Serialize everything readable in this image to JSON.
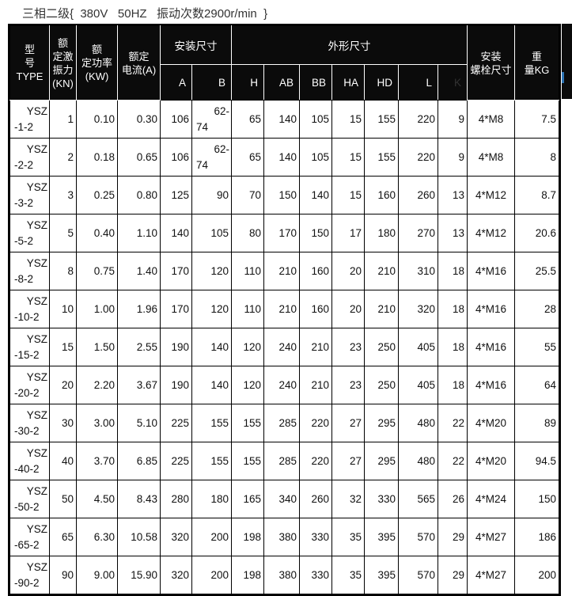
{
  "title": "三相二级{  380V   50HZ   振动次数2900r/min  }",
  "table": {
    "header": {
      "model_lines": [
        "型",
        "号",
        "TYPE"
      ],
      "force_lines": [
        "额",
        "定激",
        "振力",
        "(KN)"
      ],
      "power_lines": [
        "额",
        "定功率",
        "(KW)"
      ],
      "current_lines": [
        "额定",
        "电流(A)"
      ],
      "mount_group": "安装尺寸",
      "outline_group": "外形尺寸",
      "bolt_lines": [
        "安装",
        "螺栓尺寸"
      ],
      "weight_lines": [
        "重",
        "量KG"
      ],
      "sub_cols": [
        "A",
        "B",
        "H",
        "AB",
        "BB",
        "HA",
        "HD",
        "L",
        "K"
      ]
    },
    "rows": [
      {
        "model": "YSZ-1-2",
        "kn": "1",
        "kw": "0.10",
        "amp": "0.30",
        "a": "106",
        "b": "62-74",
        "h": "65",
        "ab": "140",
        "bb": "105",
        "ha": "15",
        "hd": "155",
        "l": "220",
        "k": "9",
        "bolt": "4*M8",
        "kg": "7.5"
      },
      {
        "model": "YSZ-2-2",
        "kn": "2",
        "kw": "0.18",
        "amp": "0.65",
        "a": "106",
        "b": "62-74",
        "h": "65",
        "ab": "140",
        "bb": "105",
        "ha": "15",
        "hd": "155",
        "l": "220",
        "k": "9",
        "bolt": "4*M8",
        "kg": "8"
      },
      {
        "model": "YSZ-3-2",
        "kn": "3",
        "kw": "0.25",
        "amp": "0.80",
        "a": "125",
        "b": "90",
        "h": "70",
        "ab": "150",
        "bb": "140",
        "ha": "15",
        "hd": "160",
        "l": "260",
        "k": "13",
        "bolt": "4*M12",
        "kg": "8.7"
      },
      {
        "model": "YSZ-5-2",
        "kn": "5",
        "kw": "0.40",
        "amp": "1.10",
        "a": "140",
        "b": "105",
        "h": "80",
        "ab": "170",
        "bb": "150",
        "ha": "17",
        "hd": "180",
        "l": "270",
        "k": "13",
        "bolt": "4*M12",
        "kg": "20.6"
      },
      {
        "model": "YSZ-8-2",
        "kn": "8",
        "kw": "0.75",
        "amp": "1.40",
        "a": "170",
        "b": "120",
        "h": "110",
        "ab": "210",
        "bb": "160",
        "ha": "20",
        "hd": "210",
        "l": "310",
        "k": "18",
        "bolt": "4*M16",
        "kg": "25.5"
      },
      {
        "model": "YSZ-10-2",
        "kn": "10",
        "kw": "1.00",
        "amp": "1.96",
        "a": "170",
        "b": "120",
        "h": "110",
        "ab": "210",
        "bb": "160",
        "ha": "20",
        "hd": "210",
        "l": "320",
        "k": "18",
        "bolt": "4*M16",
        "kg": "28"
      },
      {
        "model": "YSZ-15-2",
        "kn": "15",
        "kw": "1.50",
        "amp": "2.55",
        "a": "190",
        "b": "140",
        "h": "120",
        "ab": "240",
        "bb": "210",
        "ha": "23",
        "hd": "250",
        "l": "405",
        "k": "18",
        "bolt": "4*M16",
        "kg": "55"
      },
      {
        "model": "YSZ-20-2",
        "kn": "20",
        "kw": "2.20",
        "amp": "3.67",
        "a": "190",
        "b": "140",
        "h": "120",
        "ab": "240",
        "bb": "210",
        "ha": "23",
        "hd": "250",
        "l": "405",
        "k": "18",
        "bolt": "4*M16",
        "kg": "64"
      },
      {
        "model": "YSZ-30-2",
        "kn": "30",
        "kw": "3.00",
        "amp": "5.10",
        "a": "225",
        "b": "155",
        "h": "155",
        "ab": "285",
        "bb": "220",
        "ha": "27",
        "hd": "295",
        "l": "480",
        "k": "22",
        "bolt": "4*M20",
        "kg": "89"
      },
      {
        "model": "YSZ-40-2",
        "kn": "40",
        "kw": "3.70",
        "amp": "6.85",
        "a": "225",
        "b": "155",
        "h": "155",
        "ab": "285",
        "bb": "220",
        "ha": "27",
        "hd": "295",
        "l": "480",
        "k": "22",
        "bolt": "4*M20",
        "kg": "94.5"
      },
      {
        "model": "YSZ-50-2",
        "kn": "50",
        "kw": "4.50",
        "amp": "8.43",
        "a": "280",
        "b": "180",
        "h": "165",
        "ab": "340",
        "bb": "260",
        "ha": "32",
        "hd": "330",
        "l": "565",
        "k": "26",
        "bolt": "4*M24",
        "kg": "150"
      },
      {
        "model": "YSZ-65-2",
        "kn": "65",
        "kw": "6.30",
        "amp": "10.58",
        "a": "320",
        "b": "200",
        "h": "198",
        "ab": "380",
        "bb": "330",
        "ha": "35",
        "hd": "395",
        "l": "570",
        "k": "29",
        "bolt": "4*M27",
        "kg": "186"
      },
      {
        "model": "YSZ-90-2",
        "kn": "90",
        "kw": "9.00",
        "amp": "15.90",
        "a": "320",
        "b": "200",
        "h": "198",
        "ab": "380",
        "bb": "330",
        "ha": "35",
        "hd": "395",
        "l": "570",
        "k": "29",
        "bolt": "4*M27",
        "kg": "200"
      }
    ]
  },
  "colors": {
    "header_bg": "#0b0b0b",
    "header_text": "#ffffff",
    "k_header_text": "#333333",
    "body_text": "#111111",
    "border": "#000000",
    "cutoff_fragment_blue": "#2e75b6"
  }
}
